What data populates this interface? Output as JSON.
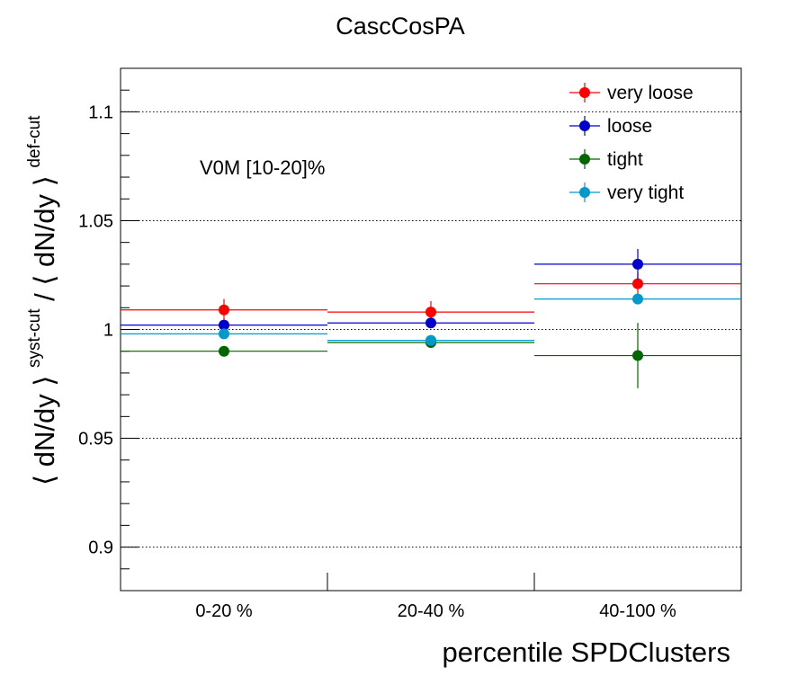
{
  "chart_data": {
    "type": "scatter",
    "title": "CascCosPA",
    "xlabel": "percentile SPDClusters",
    "ylabel": {
      "main": "⟨ dN/dy ⟩",
      "sup1": "syst-cut",
      "mid": " / ⟨ dN/dy ⟩",
      "sup2": "def-cut"
    },
    "annotation": "V0M [10-20]%",
    "categories": [
      "0-20 %",
      "20-40 %",
      "40-100 %"
    ],
    "ylim": [
      0.88,
      1.12
    ],
    "yticks": [
      0.9,
      0.95,
      1,
      1.05,
      1.1
    ],
    "ytick_labels": [
      "0.9",
      "0.95",
      "1",
      "1.05",
      "1.1"
    ],
    "grid": "horizontal-dotted",
    "legend_position": "top-right",
    "series": [
      {
        "name": "very loose",
        "color": "#ff0000",
        "values": [
          1.009,
          1.008,
          1.021
        ],
        "errors": [
          0.005,
          0.005,
          0.005
        ]
      },
      {
        "name": "loose",
        "color": "#0000cc",
        "values": [
          1.002,
          1.003,
          1.03
        ],
        "errors": [
          0.002,
          0.002,
          0.007
        ]
      },
      {
        "name": "tight",
        "color": "#006600",
        "values": [
          0.99,
          0.994,
          0.988
        ],
        "errors": [
          0.001,
          0.001,
          0.015
        ]
      },
      {
        "name": "very tight",
        "color": "#0099cc",
        "values": [
          0.998,
          0.995,
          1.014
        ],
        "errors": [
          0.001,
          0.001,
          0.001
        ]
      }
    ]
  }
}
